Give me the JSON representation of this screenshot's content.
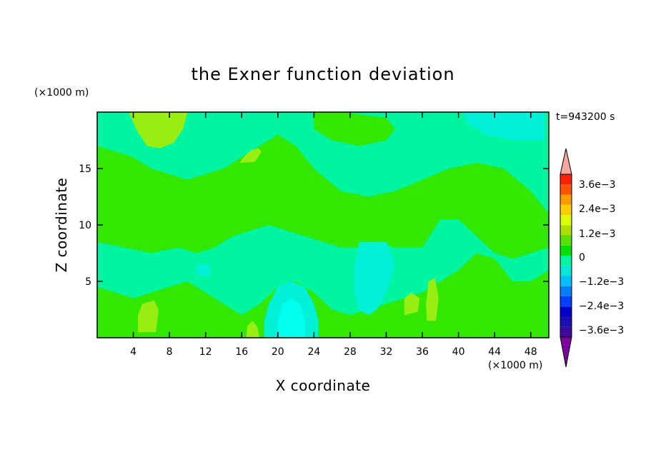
{
  "chart_data": {
    "type": "heatmap",
    "title": "the Exner function deviation",
    "xlabel": "X coordinate",
    "ylabel": "Z coordinate",
    "x_unit": "(×1000 m)",
    "y_unit": "(×1000 m)",
    "time_label": "t=943200 s",
    "xlim": [
      0,
      50
    ],
    "ylim": [
      0,
      20
    ],
    "x_ticks": [
      4,
      8,
      12,
      16,
      20,
      24,
      28,
      32,
      36,
      40,
      44,
      48
    ],
    "y_ticks": [
      5,
      10,
      15
    ],
    "colorbar": {
      "colors": [
        "#7f00a0",
        "#3d0aa0",
        "#1a0fb0",
        "#0000cd",
        "#0040ff",
        "#0080ff",
        "#00bfff",
        "#00e6d8",
        "#00f5a0",
        "#00e000",
        "#55e000",
        "#aae000",
        "#ddff00",
        "#ffcc00",
        "#ff9900",
        "#ff5500",
        "#ff2200",
        "#f4a7a0"
      ],
      "levels": [
        -0.0036,
        -0.0024,
        -0.0012,
        0,
        0.0012,
        0.0024,
        0.0036
      ],
      "labels": [
        "3.6e−3",
        "2.4e−3",
        "1.2e−3",
        "0",
        "−1.2e−3",
        "−2.4e−3",
        "−3.6e−3"
      ]
    },
    "fill_colors": {
      "background": "#00f5a0",
      "green": "#33e800",
      "lime": "#99ee11",
      "cyan": "#00f0d8",
      "light_cyan": "#00ffee"
    },
    "regions": [
      {
        "level": "green",
        "points": [
          [
            0,
            8.5
          ],
          [
            3,
            8
          ],
          [
            6,
            7.5
          ],
          [
            9,
            8
          ],
          [
            11,
            7.5
          ],
          [
            13,
            8
          ],
          [
            15,
            9
          ],
          [
            17,
            9.5
          ],
          [
            19,
            10
          ],
          [
            21,
            9.5
          ],
          [
            23,
            9
          ],
          [
            25,
            8.5
          ],
          [
            27,
            8
          ],
          [
            29,
            8
          ],
          [
            31,
            8.5
          ],
          [
            33,
            8
          ],
          [
            36,
            8
          ],
          [
            38,
            10.5
          ],
          [
            40,
            10.5
          ],
          [
            42,
            9
          ],
          [
            44,
            7.5
          ],
          [
            46,
            7
          ],
          [
            48,
            7.5
          ],
          [
            50,
            8
          ],
          [
            50,
            11
          ],
          [
            48,
            13
          ],
          [
            45,
            15
          ],
          [
            42,
            15.5
          ],
          [
            39,
            15
          ],
          [
            36,
            14
          ],
          [
            33,
            13
          ],
          [
            30,
            12.5
          ],
          [
            27,
            13
          ],
          [
            24,
            15
          ],
          [
            22,
            17
          ],
          [
            20,
            18
          ],
          [
            18,
            17
          ],
          [
            16,
            16
          ],
          [
            14,
            15
          ],
          [
            12,
            14.5
          ],
          [
            10,
            14
          ],
          [
            8,
            14.5
          ],
          [
            6,
            15
          ],
          [
            4,
            16
          ],
          [
            2,
            16.5
          ],
          [
            0,
            17
          ]
        ]
      },
      {
        "level": "green",
        "points": [
          [
            0,
            0
          ],
          [
            50,
            0
          ],
          [
            50,
            6
          ],
          [
            48,
            5
          ],
          [
            46,
            5
          ],
          [
            44,
            7
          ],
          [
            42,
            7.5
          ],
          [
            40,
            6
          ],
          [
            38,
            5
          ],
          [
            36,
            4
          ],
          [
            34,
            3.5
          ],
          [
            32,
            3
          ],
          [
            30,
            2.5
          ],
          [
            28,
            2
          ],
          [
            26,
            2.5
          ],
          [
            24,
            4
          ],
          [
            22,
            5
          ],
          [
            20,
            4.5
          ],
          [
            18,
            3
          ],
          [
            16,
            2
          ],
          [
            14,
            3
          ],
          [
            12,
            4
          ],
          [
            10,
            5
          ],
          [
            8,
            4.5
          ],
          [
            6,
            4
          ],
          [
            4,
            3.5
          ],
          [
            2,
            4
          ],
          [
            0,
            4.5
          ]
        ]
      },
      {
        "level": "green",
        "points": [
          [
            24,
            20
          ],
          [
            27,
            20
          ],
          [
            32,
            19.5
          ],
          [
            33,
            18.5
          ],
          [
            32,
            17.5
          ],
          [
            29,
            17
          ],
          [
            26,
            17.5
          ],
          [
            24,
            18.5
          ]
        ]
      },
      {
        "level": "cyan",
        "points": [
          [
            29,
            8.5
          ],
          [
            32,
            8.5
          ],
          [
            33,
            6.5
          ],
          [
            32,
            4
          ],
          [
            31,
            2.5
          ],
          [
            30,
            2
          ],
          [
            29,
            2.5
          ],
          [
            28.5,
            4
          ],
          [
            28.5,
            6.5
          ]
        ]
      },
      {
        "level": "cyan",
        "points": [
          [
            18.5,
            0
          ],
          [
            24.5,
            0
          ],
          [
            24.5,
            1.5
          ],
          [
            24,
            3
          ],
          [
            23,
            4.5
          ],
          [
            21.5,
            5
          ],
          [
            20,
            4.5
          ],
          [
            19,
            3
          ],
          [
            18.5,
            1.5
          ]
        ]
      },
      {
        "level": "light_cyan",
        "points": [
          [
            20,
            0
          ],
          [
            23,
            0
          ],
          [
            23,
            1.5
          ],
          [
            22.5,
            3
          ],
          [
            21.5,
            3.5
          ],
          [
            20.5,
            3
          ],
          [
            20,
            1.5
          ]
        ]
      },
      {
        "level": "cyan",
        "points": [
          [
            40.5,
            20
          ],
          [
            49.5,
            20
          ],
          [
            49.5,
            17.5
          ],
          [
            46,
            17.5
          ],
          [
            43,
            18
          ],
          [
            41,
            19
          ]
        ]
      },
      {
        "level": "cyan",
        "points": [
          [
            11,
            6.5
          ],
          [
            12.5,
            6.5
          ],
          [
            12.5,
            5.5
          ],
          [
            11,
            5.5
          ]
        ]
      },
      {
        "level": "lime",
        "points": [
          [
            3.5,
            20
          ],
          [
            10,
            20
          ],
          [
            9.5,
            18.5
          ],
          [
            8.5,
            17.3
          ],
          [
            7,
            16.8
          ],
          [
            5.5,
            17
          ],
          [
            4.3,
            18.5
          ]
        ]
      },
      {
        "level": "lime",
        "points": [
          [
            15.8,
            15.5
          ],
          [
            17.5,
            15.6
          ],
          [
            18.2,
            16.5
          ],
          [
            17.8,
            16.8
          ],
          [
            17,
            16.6
          ],
          [
            16.2,
            16
          ]
        ]
      },
      {
        "level": "lime",
        "points": [
          [
            4.5,
            0.5
          ],
          [
            6.5,
            0.5
          ],
          [
            6.8,
            2.5
          ],
          [
            6.3,
            3.3
          ],
          [
            5,
            3
          ],
          [
            4.5,
            2
          ]
        ]
      },
      {
        "level": "lime",
        "points": [
          [
            16.5,
            0
          ],
          [
            18,
            0
          ],
          [
            17.7,
            1
          ],
          [
            17.2,
            1.5
          ],
          [
            16.6,
            1
          ]
        ]
      },
      {
        "level": "lime",
        "points": [
          [
            34,
            2
          ],
          [
            35.5,
            2.3
          ],
          [
            35.7,
            3.5
          ],
          [
            34.8,
            4
          ],
          [
            34,
            3.5
          ]
        ]
      },
      {
        "level": "lime",
        "points": [
          [
            36.5,
            1.5
          ],
          [
            37.5,
            1.5
          ],
          [
            37.8,
            3.5
          ],
          [
            37.4,
            5.3
          ],
          [
            36.7,
            5
          ],
          [
            36.4,
            3
          ]
        ]
      }
    ]
  }
}
